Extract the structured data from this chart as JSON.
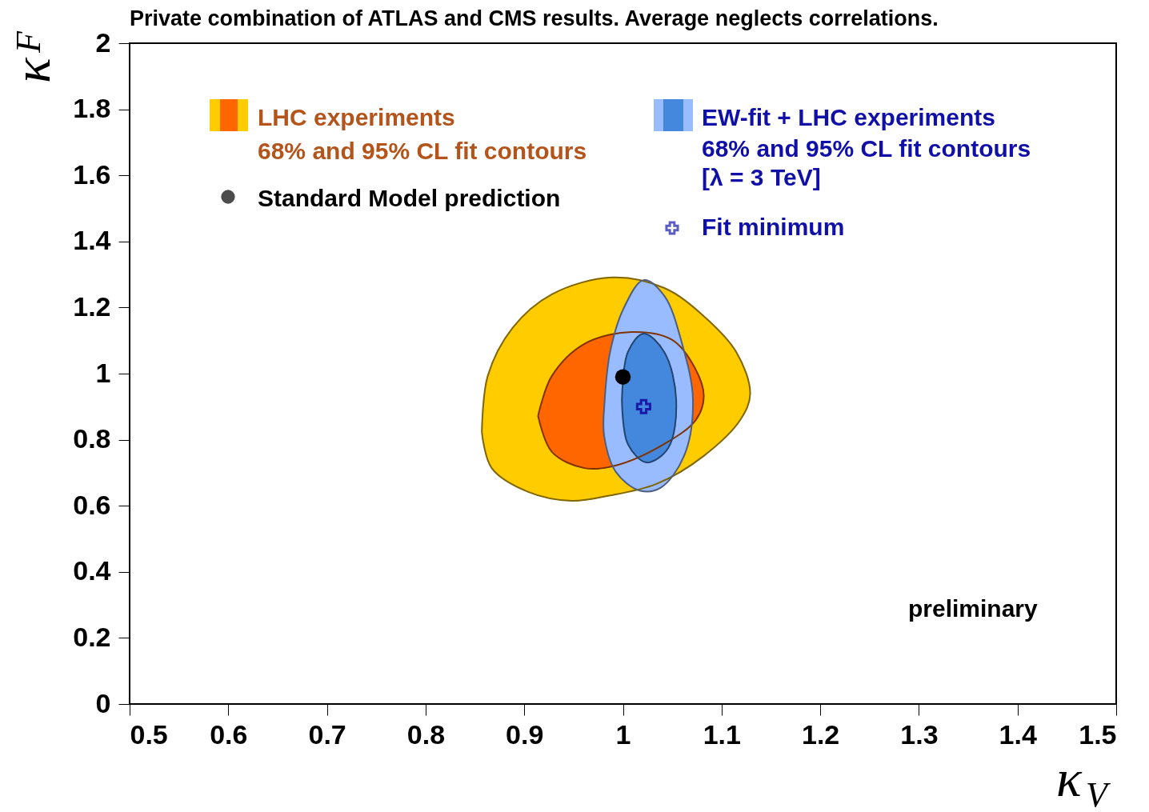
{
  "chart_data": {
    "type": "area",
    "title": "Private combination of ATLAS and CMS results. Average neglects correlations.",
    "xlabel": "κ$_{V}$",
    "ylabel": "κ$_{F}$",
    "xlim": [
      0.5,
      1.5
    ],
    "xticks": [
      0.5,
      0.6,
      0.7,
      0.8,
      0.9,
      1,
      1.1,
      1.2,
      1.3,
      1.4,
      1.5
    ],
    "ylim": [
      0,
      2
    ],
    "yticks": [
      0,
      0.2,
      0.4,
      0.6,
      0.8,
      1,
      1.2,
      1.4,
      1.6,
      1.8,
      2
    ],
    "grid": false,
    "legend": "top",
    "series": [
      {
        "name": "LHC experiments",
        "color": "#ffcc00",
        "x": [
          0.857,
          0.863,
          0.888,
          0.928,
          0.989,
          1.042,
          1.082,
          1.115,
          1.129,
          1.119,
          1.082,
          1.034,
          0.985,
          0.948,
          0.904,
          0.867,
          0.857
        ],
        "values": [
          0.823,
          0.993,
          1.138,
          1.24,
          1.291,
          1.259,
          1.174,
          1.065,
          0.939,
          0.86,
          0.751,
          0.666,
          0.63,
          0.615,
          0.642,
          0.714,
          0.823
        ]
      },
      {
        "color": "#ff6600",
        "x": [
          0.914,
          0.928,
          0.961,
          1.009,
          1.05,
          1.073,
          1.082,
          1.074,
          1.042,
          0.993,
          0.961,
          0.928,
          0.914
        ],
        "values": [
          0.872,
          0.993,
          1.09,
          1.126,
          1.102,
          1.017,
          0.932,
          0.86,
          0.787,
          0.722,
          0.714,
          0.763,
          0.872
        ]
      },
      {
        "name": "EW-fit + LHC experiments",
        "color": "#99bbff",
        "x": [
          0.981,
          0.987,
          1.001,
          1.021,
          1.042,
          1.06,
          1.071,
          1.062,
          1.038,
          1.017,
          0.993,
          0.981,
          0.981
        ],
        "values": [
          0.896,
          1.065,
          1.199,
          1.283,
          1.235,
          1.09,
          0.92,
          0.751,
          0.654,
          0.646,
          0.702,
          0.811,
          0.896
        ]
      },
      {
        "color": "#4488dd",
        "x": [
          0.999,
          1.005,
          1.021,
          1.042,
          1.054,
          1.046,
          1.024,
          1.005,
          0.999
        ],
        "values": [
          0.92,
          1.065,
          1.121,
          1.065,
          0.92,
          0.775,
          0.731,
          0.787,
          0.92
        ]
      },
      {
        "type": "scatter",
        "name": "Standard Model prediction",
        "color": "#000000",
        "marker": "circle",
        "x": [
          1
        ],
        "values": [
          0.99
        ]
      },
      {
        "type": "scatter",
        "name": "Fit minimum",
        "color": "#1a1aa8",
        "marker": "cross",
        "x": [
          1.021
        ],
        "values": [
          0.9
        ]
      }
    ],
    "annotations": [
      "68% and 95% CL fit contours",
      "68% and 95% CL fit contours",
      "[λ = 3 TeV]",
      "preliminary"
    ]
  }
}
